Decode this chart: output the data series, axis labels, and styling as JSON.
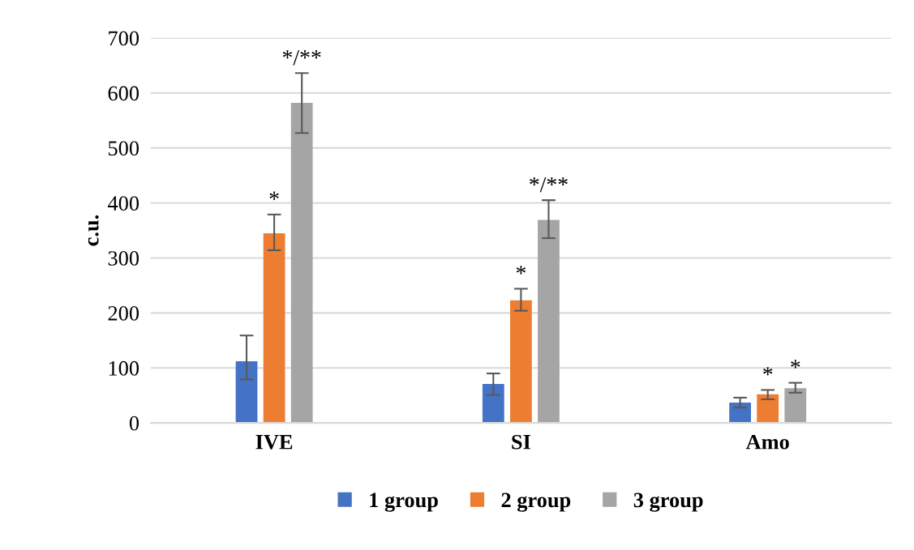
{
  "chart_data": {
    "type": "bar",
    "ylabel": "c.u.",
    "categories": [
      "IVE",
      "SI",
      "Amo"
    ],
    "series": [
      {
        "name": "1 group",
        "color": "#4472c4",
        "values": [
          112,
          71,
          37
        ],
        "errors": [
          [
            79,
            159
          ],
          [
            51,
            90
          ],
          [
            28,
            46
          ]
        ],
        "value_labels": [
          null,
          null,
          null
        ]
      },
      {
        "name": "2 group",
        "color": "#ed7d31",
        "values": [
          345,
          223,
          52
        ],
        "errors": [
          [
            314,
            379
          ],
          [
            204,
            244
          ],
          [
            43,
            60
          ]
        ],
        "value_labels": [
          "*",
          "*",
          "*"
        ]
      },
      {
        "name": "3 group",
        "color": "#a5a5a5",
        "values": [
          582,
          369,
          63
        ],
        "errors": [
          [
            527,
            636
          ],
          [
            336,
            405
          ],
          [
            55,
            73
          ]
        ],
        "value_labels": [
          "*/**",
          "*/**",
          "*"
        ]
      }
    ],
    "ylim": [
      0,
      700
    ],
    "yticks": [
      0,
      100,
      200,
      300,
      400,
      500,
      600,
      700
    ],
    "grid": "y",
    "legend": "bottom"
  }
}
